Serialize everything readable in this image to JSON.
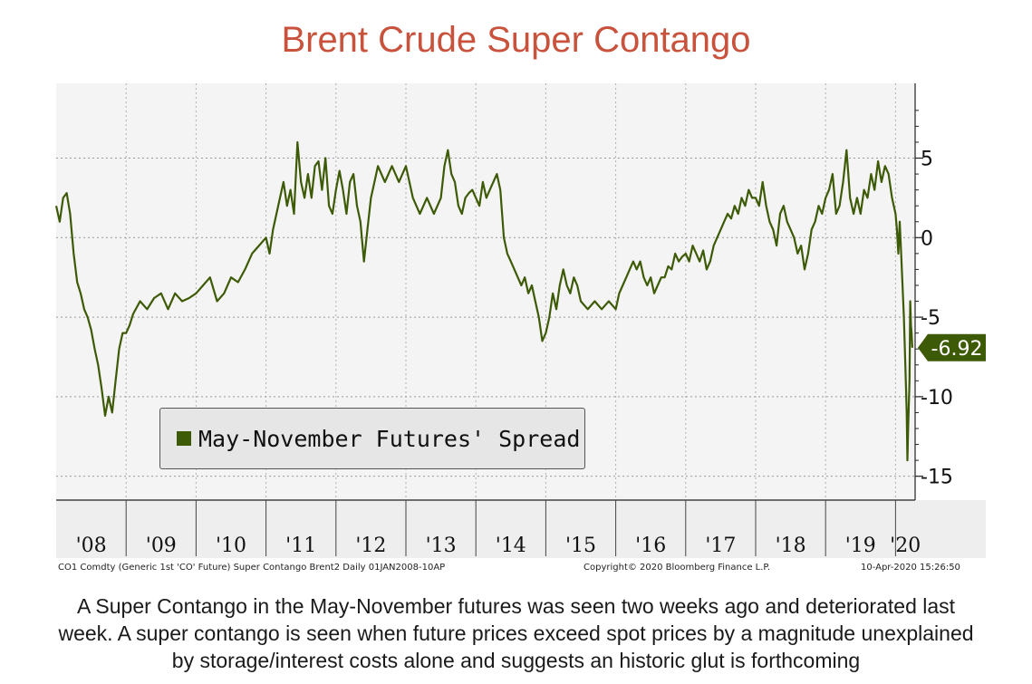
{
  "title": "Brent Crude Super Contango",
  "legend": {
    "label": "May-November Futures' Spread",
    "color": "#3d5a06"
  },
  "last_value_label": "-6.92",
  "footer": {
    "source": "CO1 Comdty (Generic 1st 'CO' Future) Super Contango Brent2  Daily 01JAN2008-10AP",
    "copyright": "Copyright© 2020 Bloomberg Finance L.P.",
    "timestamp": "10-Apr-2020 15:26:50"
  },
  "caption": [
    "A Super Contango in the May-November futures was seen two weeks ago and deteriorated last",
    "week. A super contango is seen when future prices exceed spot prices by a magnitude unexplained",
    "by storage/interest costs alone and suggests an historic glut is forthcoming"
  ],
  "colors": {
    "title": "#c8523c",
    "line": "#3d5a06",
    "plot_bg": "#f4f4f4",
    "axis_band": "#eeeeee"
  },
  "chart_data": {
    "type": "line",
    "title": "Brent Crude Super Contango",
    "xlabel": "",
    "ylabel": "",
    "x_ticks": [
      "'08",
      "'09",
      "'10",
      "'11",
      "'12",
      "'13",
      "'14",
      "'15",
      "'16",
      "'17",
      "'18",
      "'19",
      "'20"
    ],
    "y_ticks": [
      5,
      0,
      -5,
      -10,
      -15
    ],
    "xlim": [
      2008.0,
      2020.28
    ],
    "ylim": [
      -16.5,
      9.7
    ],
    "y_axis_side": "right",
    "grid": true,
    "legend_position": "bottom-left",
    "last_value": -6.92,
    "series": [
      {
        "name": "May-November Futures' Spread",
        "points": [
          [
            2008.0,
            2.0
          ],
          [
            2008.05,
            1.0
          ],
          [
            2008.1,
            2.5
          ],
          [
            2008.15,
            2.8
          ],
          [
            2008.2,
            1.5
          ],
          [
            2008.25,
            -1.0
          ],
          [
            2008.3,
            -2.8
          ],
          [
            2008.35,
            -3.5
          ],
          [
            2008.4,
            -4.5
          ],
          [
            2008.45,
            -5.0
          ],
          [
            2008.5,
            -5.8
          ],
          [
            2008.55,
            -7.0
          ],
          [
            2008.6,
            -8.0
          ],
          [
            2008.65,
            -9.5
          ],
          [
            2008.7,
            -11.2
          ],
          [
            2008.75,
            -10.0
          ],
          [
            2008.8,
            -11.0
          ],
          [
            2008.85,
            -9.0
          ],
          [
            2008.9,
            -7.0
          ],
          [
            2008.95,
            -6.0
          ],
          [
            2009.0,
            -6.0
          ],
          [
            2009.05,
            -5.5
          ],
          [
            2009.1,
            -4.8
          ],
          [
            2009.2,
            -4.0
          ],
          [
            2009.3,
            -4.5
          ],
          [
            2009.4,
            -3.8
          ],
          [
            2009.5,
            -3.5
          ],
          [
            2009.6,
            -4.5
          ],
          [
            2009.7,
            -3.5
          ],
          [
            2009.8,
            -4.0
          ],
          [
            2009.9,
            -3.8
          ],
          [
            2010.0,
            -3.5
          ],
          [
            2010.1,
            -3.0
          ],
          [
            2010.2,
            -2.5
          ],
          [
            2010.3,
            -4.0
          ],
          [
            2010.4,
            -3.5
          ],
          [
            2010.5,
            -2.5
          ],
          [
            2010.6,
            -2.8
          ],
          [
            2010.7,
            -2.0
          ],
          [
            2010.8,
            -1.0
          ],
          [
            2010.9,
            -0.5
          ],
          [
            2011.0,
            0.0
          ],
          [
            2011.05,
            -1.0
          ],
          [
            2011.1,
            0.5
          ],
          [
            2011.2,
            2.5
          ],
          [
            2011.25,
            3.5
          ],
          [
            2011.3,
            2.0
          ],
          [
            2011.35,
            3.0
          ],
          [
            2011.4,
            1.5
          ],
          [
            2011.45,
            6.0
          ],
          [
            2011.5,
            3.5
          ],
          [
            2011.55,
            2.5
          ],
          [
            2011.6,
            4.0
          ],
          [
            2011.65,
            2.5
          ],
          [
            2011.7,
            4.5
          ],
          [
            2011.75,
            4.8
          ],
          [
            2011.8,
            3.0
          ],
          [
            2011.85,
            5.0
          ],
          [
            2011.9,
            2.0
          ],
          [
            2011.95,
            1.5
          ],
          [
            2012.0,
            3.0
          ],
          [
            2012.05,
            4.2
          ],
          [
            2012.1,
            3.0
          ],
          [
            2012.15,
            1.5
          ],
          [
            2012.2,
            3.5
          ],
          [
            2012.25,
            4.0
          ],
          [
            2012.3,
            2.0
          ],
          [
            2012.35,
            1.0
          ],
          [
            2012.4,
            -1.5
          ],
          [
            2012.45,
            0.5
          ],
          [
            2012.5,
            2.5
          ],
          [
            2012.55,
            3.5
          ],
          [
            2012.6,
            4.5
          ],
          [
            2012.7,
            3.5
          ],
          [
            2012.8,
            4.5
          ],
          [
            2012.9,
            3.5
          ],
          [
            2013.0,
            4.5
          ],
          [
            2013.1,
            2.5
          ],
          [
            2013.2,
            1.5
          ],
          [
            2013.3,
            2.5
          ],
          [
            2013.4,
            1.5
          ],
          [
            2013.5,
            2.5
          ],
          [
            2013.55,
            4.5
          ],
          [
            2013.6,
            5.5
          ],
          [
            2013.65,
            4.0
          ],
          [
            2013.7,
            3.5
          ],
          [
            2013.75,
            2.0
          ],
          [
            2013.8,
            1.5
          ],
          [
            2013.85,
            2.5
          ],
          [
            2013.9,
            2.8
          ],
          [
            2013.95,
            3.0
          ],
          [
            2014.0,
            2.5
          ],
          [
            2014.05,
            2.0
          ],
          [
            2014.1,
            3.5
          ],
          [
            2014.15,
            2.5
          ],
          [
            2014.2,
            3.0
          ],
          [
            2014.3,
            4.0
          ],
          [
            2014.35,
            3.0
          ],
          [
            2014.4,
            0.0
          ],
          [
            2014.45,
            -1.0
          ],
          [
            2014.5,
            -1.5
          ],
          [
            2014.55,
            -2.0
          ],
          [
            2014.6,
            -2.5
          ],
          [
            2014.65,
            -3.0
          ],
          [
            2014.7,
            -2.5
          ],
          [
            2014.75,
            -3.5
          ],
          [
            2014.8,
            -3.0
          ],
          [
            2014.85,
            -4.0
          ],
          [
            2014.9,
            -5.0
          ],
          [
            2014.95,
            -6.5
          ],
          [
            2015.0,
            -6.0
          ],
          [
            2015.05,
            -5.0
          ],
          [
            2015.1,
            -3.5
          ],
          [
            2015.15,
            -4.5
          ],
          [
            2015.2,
            -3.0
          ],
          [
            2015.25,
            -2.0
          ],
          [
            2015.3,
            -3.0
          ],
          [
            2015.35,
            -3.5
          ],
          [
            2015.4,
            -2.5
          ],
          [
            2015.45,
            -3.0
          ],
          [
            2015.5,
            -4.0
          ],
          [
            2015.6,
            -4.5
          ],
          [
            2015.7,
            -4.0
          ],
          [
            2015.8,
            -4.5
          ],
          [
            2015.9,
            -4.0
          ],
          [
            2016.0,
            -4.5
          ],
          [
            2016.05,
            -3.5
          ],
          [
            2016.1,
            -3.0
          ],
          [
            2016.15,
            -2.5
          ],
          [
            2016.2,
            -2.0
          ],
          [
            2016.25,
            -1.5
          ],
          [
            2016.3,
            -2.0
          ],
          [
            2016.35,
            -1.5
          ],
          [
            2016.4,
            -2.5
          ],
          [
            2016.45,
            -3.0
          ],
          [
            2016.5,
            -2.5
          ],
          [
            2016.55,
            -3.5
          ],
          [
            2016.6,
            -3.0
          ],
          [
            2016.65,
            -2.5
          ],
          [
            2016.7,
            -2.5
          ],
          [
            2016.75,
            -1.8
          ],
          [
            2016.8,
            -2.0
          ],
          [
            2016.85,
            -1.0
          ],
          [
            2016.9,
            -1.5
          ],
          [
            2016.95,
            -1.2
          ],
          [
            2017.0,
            -1.0
          ],
          [
            2017.05,
            -1.5
          ],
          [
            2017.1,
            -0.5
          ],
          [
            2017.15,
            -1.0
          ],
          [
            2017.2,
            -1.5
          ],
          [
            2017.25,
            -0.8
          ],
          [
            2017.3,
            -2.0
          ],
          [
            2017.35,
            -1.5
          ],
          [
            2017.4,
            -0.5
          ],
          [
            2017.45,
            0.0
          ],
          [
            2017.5,
            0.5
          ],
          [
            2017.55,
            1.0
          ],
          [
            2017.6,
            1.5
          ],
          [
            2017.65,
            1.2
          ],
          [
            2017.7,
            2.0
          ],
          [
            2017.75,
            1.5
          ],
          [
            2017.8,
            2.5
          ],
          [
            2017.85,
            2.0
          ],
          [
            2017.9,
            3.0
          ],
          [
            2017.95,
            2.5
          ],
          [
            2018.0,
            2.5
          ],
          [
            2018.05,
            2.0
          ],
          [
            2018.1,
            3.5
          ],
          [
            2018.15,
            2.0
          ],
          [
            2018.2,
            1.0
          ],
          [
            2018.25,
            0.5
          ],
          [
            2018.3,
            -0.5
          ],
          [
            2018.35,
            1.5
          ],
          [
            2018.4,
            2.0
          ],
          [
            2018.45,
            1.0
          ],
          [
            2018.5,
            0.5
          ],
          [
            2018.55,
            0.0
          ],
          [
            2018.6,
            -1.0
          ],
          [
            2018.65,
            -0.5
          ],
          [
            2018.7,
            -2.0
          ],
          [
            2018.75,
            -1.0
          ],
          [
            2018.8,
            0.5
          ],
          [
            2018.85,
            1.0
          ],
          [
            2018.9,
            2.0
          ],
          [
            2018.95,
            1.5
          ],
          [
            2019.0,
            2.5
          ],
          [
            2019.05,
            3.0
          ],
          [
            2019.1,
            4.0
          ],
          [
            2019.15,
            1.5
          ],
          [
            2019.2,
            2.0
          ],
          [
            2019.25,
            3.5
          ],
          [
            2019.3,
            5.5
          ],
          [
            2019.35,
            2.5
          ],
          [
            2019.4,
            1.5
          ],
          [
            2019.45,
            2.5
          ],
          [
            2019.5,
            1.5
          ],
          [
            2019.55,
            3.0
          ],
          [
            2019.6,
            2.5
          ],
          [
            2019.65,
            4.0
          ],
          [
            2019.7,
            3.0
          ],
          [
            2019.75,
            4.8
          ],
          [
            2019.8,
            3.5
          ],
          [
            2019.85,
            4.5
          ],
          [
            2019.9,
            4.0
          ],
          [
            2019.95,
            2.5
          ],
          [
            2020.0,
            1.5
          ],
          [
            2020.02,
            0.5
          ],
          [
            2020.04,
            -1.0
          ],
          [
            2020.06,
            1.0
          ],
          [
            2020.08,
            -1.0
          ],
          [
            2020.1,
            -3.0
          ],
          [
            2020.12,
            -5.0
          ],
          [
            2020.14,
            -8.0
          ],
          [
            2020.16,
            -11.0
          ],
          [
            2020.17,
            -14.0
          ],
          [
            2020.18,
            -12.0
          ],
          [
            2020.2,
            -9.0
          ],
          [
            2020.21,
            -4.0
          ],
          [
            2020.22,
            -5.5
          ],
          [
            2020.23,
            -6.0
          ],
          [
            2020.24,
            -6.92
          ]
        ]
      }
    ]
  }
}
